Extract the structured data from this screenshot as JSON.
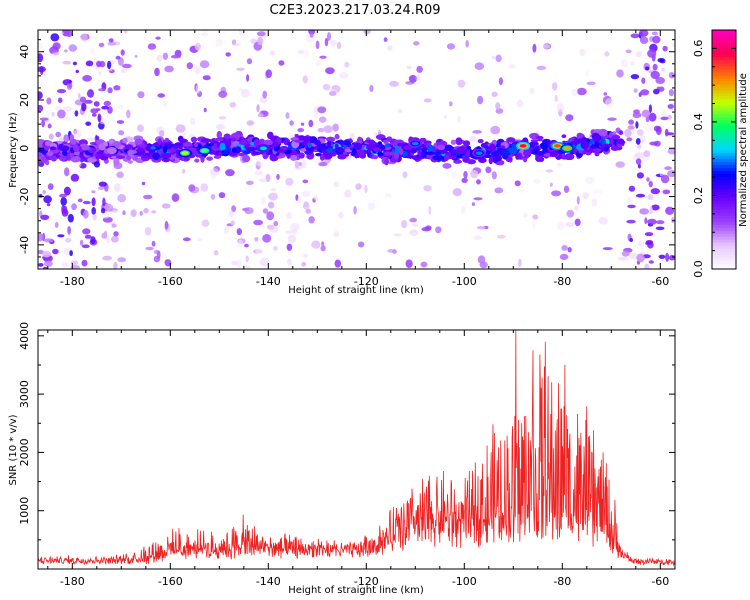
{
  "title": "C2E3.2023.217.03.24.R09",
  "chart_data": [
    {
      "type": "heatmap",
      "xlabel": "Height of straight line (km)",
      "ylabel": "Frequency (Hz)",
      "xlim": [
        -187,
        -57
      ],
      "ylim": [
        -50,
        49
      ],
      "xticks": [
        -180,
        -160,
        -140,
        -120,
        -100,
        -80,
        -60
      ],
      "yticks": [
        -40,
        -20,
        0,
        20,
        40
      ],
      "band": {
        "center_hz": [
          [
            -187,
            -1
          ],
          [
            -165,
            -1
          ],
          [
            -140,
            1
          ],
          [
            -120,
            0
          ],
          [
            -100,
            -2
          ],
          [
            -80,
            0
          ],
          [
            -70,
            3
          ]
        ],
        "half_width_hz": 6,
        "x_range": [
          -187,
          -68
        ],
        "peaks": [
          {
            "x": -157,
            "y": -2,
            "amplitude": 0.45
          },
          {
            "x": -153,
            "y": -1,
            "amplitude": 0.42
          },
          {
            "x": -88,
            "y": 1,
            "amplitude": 0.6
          },
          {
            "x": -81,
            "y": 1,
            "amplitude": 0.55
          },
          {
            "x": -79,
            "y": 0,
            "amplitude": 0.5
          },
          {
            "x": -141,
            "y": 0,
            "amplitude": 0.35
          },
          {
            "x": -110,
            "y": 2,
            "amplitude": 0.3
          },
          {
            "x": -97,
            "y": -2,
            "amplitude": 0.3
          }
        ]
      },
      "colorbar": {
        "label": "Normalized spectral amplitude",
        "range": [
          0.0,
          0.65
        ],
        "ticks": [
          "0.0",
          "0.2",
          "0.4",
          "0.6"
        ],
        "tick_values": [
          0.0,
          0.2,
          0.4,
          0.6
        ],
        "colors": [
          "#ffffff",
          "#e8c8ff",
          "#9a3dff",
          "#6a00ff",
          "#0000ff",
          "#00d8ff",
          "#00ff60",
          "#c8ff00",
          "#ff8000",
          "#ff0050",
          "#ff00c0"
        ]
      },
      "grid": false
    },
    {
      "type": "line",
      "xlabel": "Height of straight line (km)",
      "ylabel": "SNR (10 * v/v)",
      "xlim": [
        -187,
        -57
      ],
      "ylim": [
        0,
        4100
      ],
      "xticks": [
        -180,
        -160,
        -140,
        -120,
        -100,
        -80,
        -60
      ],
      "yticks": [
        1000,
        2000,
        3000,
        4000
      ],
      "color": "#ee2222",
      "envelope": [
        [
          -187,
          200
        ],
        [
          -170,
          220
        ],
        [
          -162,
          600
        ],
        [
          -158,
          700
        ],
        [
          -150,
          600
        ],
        [
          -145,
          900
        ],
        [
          -140,
          600
        ],
        [
          -130,
          500
        ],
        [
          -122,
          420
        ],
        [
          -118,
          700
        ],
        [
          -112,
          1400
        ],
        [
          -105,
          1800
        ],
        [
          -100,
          1500
        ],
        [
          -95,
          2400
        ],
        [
          -90,
          2800
        ],
        [
          -88,
          3500
        ],
        [
          -85,
          3800
        ],
        [
          -80,
          3500
        ],
        [
          -77,
          3000
        ],
        [
          -72,
          2300
        ],
        [
          -70,
          1700
        ],
        [
          -68,
          400
        ],
        [
          -65,
          200
        ],
        [
          -57,
          180
        ]
      ],
      "baseline": [
        [
          -187,
          150
        ],
        [
          -165,
          160
        ],
        [
          -160,
          280
        ],
        [
          -150,
          320
        ],
        [
          -140,
          340
        ],
        [
          -125,
          330
        ],
        [
          -118,
          400
        ],
        [
          -112,
          600
        ],
        [
          -100,
          700
        ],
        [
          -90,
          800
        ],
        [
          -80,
          800
        ],
        [
          -72,
          700
        ],
        [
          -69,
          300
        ],
        [
          -66,
          130
        ],
        [
          -57,
          120
        ]
      ],
      "peaks": [
        [
          -89.5,
          4100
        ],
        [
          -86,
          3750
        ],
        [
          -83.5,
          3900
        ],
        [
          -79.5,
          3500
        ]
      ],
      "grid": false
    }
  ]
}
